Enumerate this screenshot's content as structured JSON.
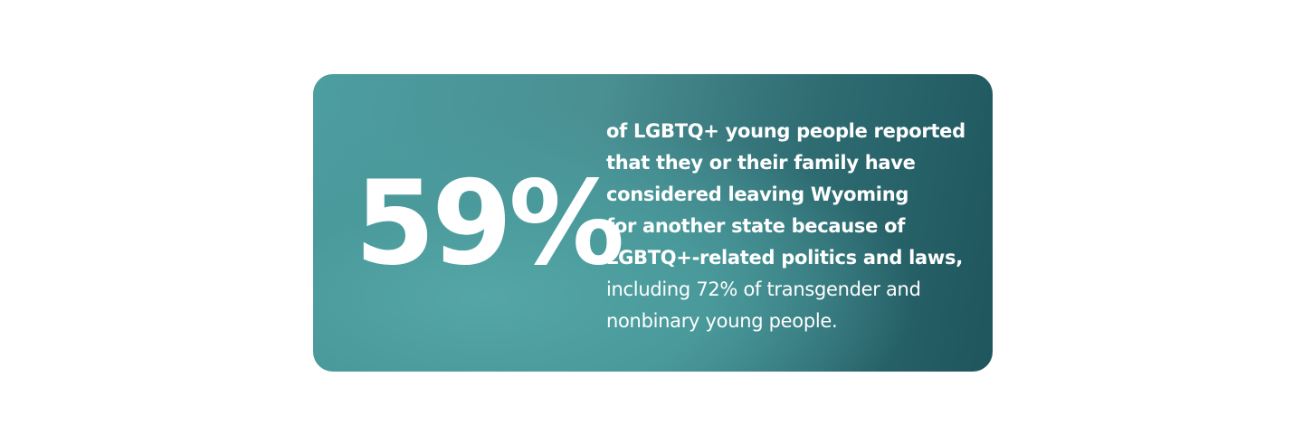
{
  "stat": {
    "figure": "59%",
    "lead_lines": [
      "of LGBTQ+ young people reported",
      "that they or their family have",
      "considered leaving Wyoming",
      "for another state because of",
      "LGBTQ+-related politics and laws,"
    ],
    "detail_lines": [
      "including 72% of transgender and",
      "nonbinary young people."
    ]
  }
}
